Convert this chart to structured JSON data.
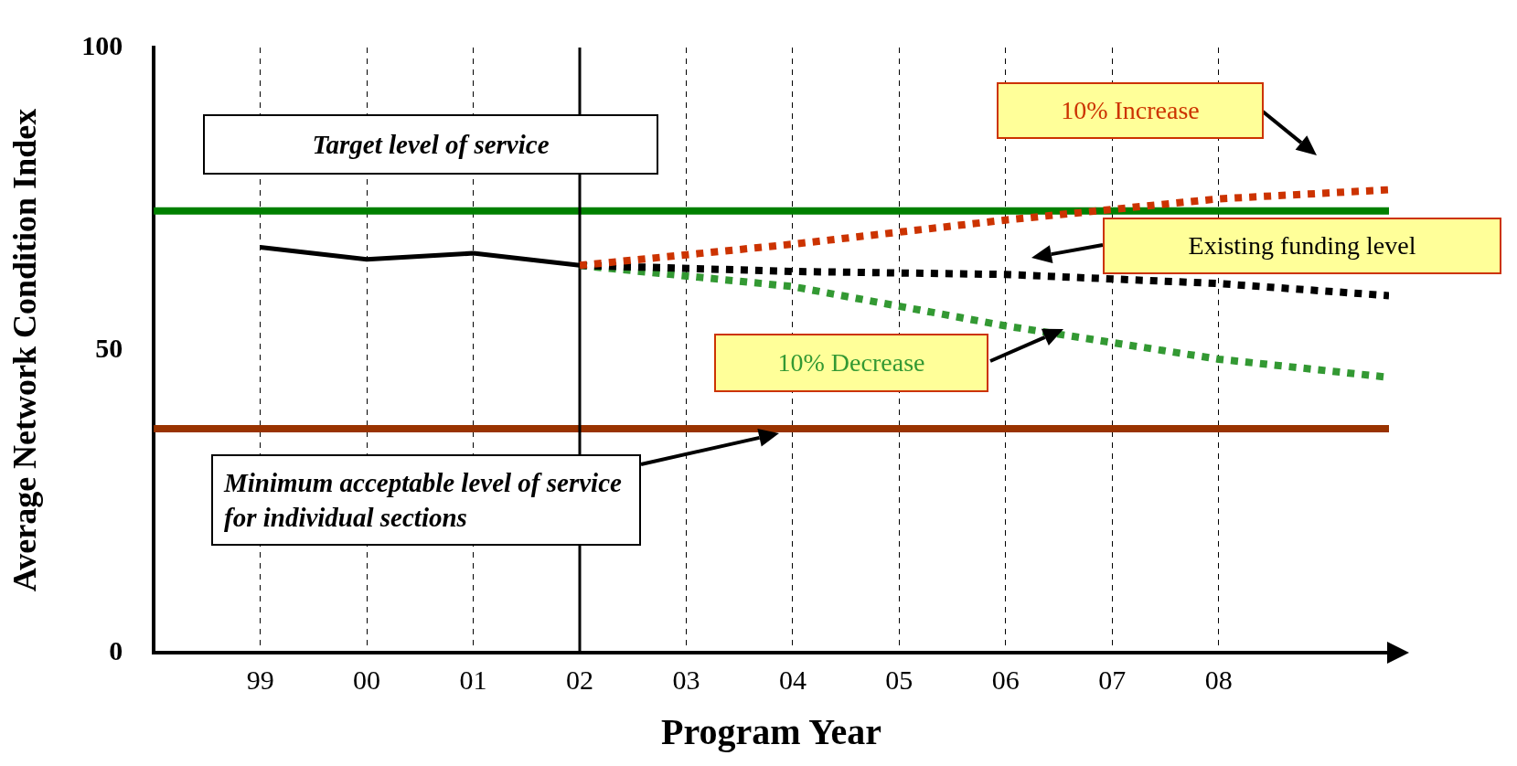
{
  "chart_data": {
    "type": "line",
    "xlabel": "Program Year",
    "ylabel": "Average Network Condition Index",
    "xlim": [
      1998,
      2009.6
    ],
    "xticks": [
      {
        "value": 1999,
        "label": "99"
      },
      {
        "value": 2000,
        "label": "00"
      },
      {
        "value": 2001,
        "label": "01"
      },
      {
        "value": 2002,
        "label": "02"
      },
      {
        "value": 2003,
        "label": "03"
      },
      {
        "value": 2004,
        "label": "04"
      },
      {
        "value": 2005,
        "label": "05"
      },
      {
        "value": 2006,
        "label": "06"
      },
      {
        "value": 2007,
        "label": "07"
      },
      {
        "value": 2008,
        "label": "08"
      }
    ],
    "ylim": [
      0,
      100
    ],
    "yticks": [
      0,
      50,
      100
    ],
    "grid": "x",
    "legend": false,
    "series": [
      {
        "color": "#000000",
        "line_style": "solid",
        "x": [
          1999,
          2000,
          2001,
          2002
        ],
        "values": [
          67,
          65,
          66,
          64
        ]
      },
      {
        "name": "10% Increase",
        "color": "#cc3300",
        "line_style": "dotted",
        "x": [
          2002,
          2004,
          2006,
          2008,
          2009.6
        ],
        "values": [
          64,
          67.5,
          71.5,
          75,
          76.5
        ]
      },
      {
        "name": "Existing funding level",
        "color": "#000000",
        "line_style": "dotted",
        "x": [
          2002,
          2004,
          2006,
          2008,
          2009.6
        ],
        "values": [
          64,
          63,
          62.5,
          61,
          59
        ]
      },
      {
        "name": "10% Decrease",
        "color": "#339933",
        "line_style": "dotted",
        "x": [
          2002,
          2004,
          2006,
          2008,
          2009.6
        ],
        "values": [
          64,
          60.5,
          54,
          48.5,
          45.5
        ]
      }
    ],
    "ref_lines": [
      {
        "axis": "y",
        "value": 73,
        "label": "Target level of service",
        "color": "#008000"
      },
      {
        "axis": "y",
        "value": 37,
        "label": "Minimum acceptable level of service for individual sections",
        "color": "#993300"
      },
      {
        "axis": "x",
        "value": 2002,
        "color": "#000000"
      }
    ]
  }
}
